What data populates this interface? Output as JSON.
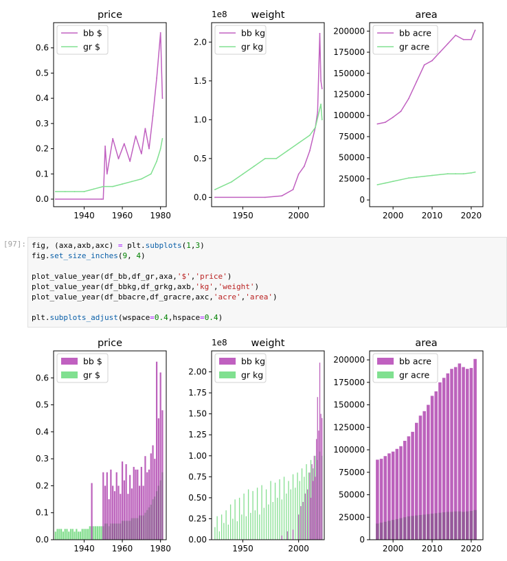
{
  "notebook": {
    "cell_prompt": "[97]:",
    "code_lines": [
      [
        [
          "t",
          "fig, (axa,axb,axc) "
        ],
        [
          "o",
          "="
        ],
        [
          "t",
          " plt."
        ],
        [
          "f",
          "subplots"
        ],
        [
          "t",
          "("
        ],
        [
          "n",
          "1"
        ],
        [
          "t",
          ","
        ],
        [
          "n",
          "3"
        ],
        [
          "t",
          ")"
        ]
      ],
      [
        [
          "t",
          "fig."
        ],
        [
          "f",
          "set_size_inches"
        ],
        [
          "t",
          "("
        ],
        [
          "n",
          "9"
        ],
        [
          "t",
          ", "
        ],
        [
          "n",
          "4"
        ],
        [
          "t",
          ")"
        ]
      ],
      [],
      [
        [
          "t",
          "plot_value_year(df_bb,df_gr,axa,"
        ],
        [
          "s",
          "'$'"
        ],
        [
          "t",
          ","
        ],
        [
          "s",
          "'price'"
        ],
        [
          "t",
          ")"
        ]
      ],
      [
        [
          "t",
          "plot_value_year(df_bbkg,df_grkg,axb,"
        ],
        [
          "s",
          "'kg'"
        ],
        [
          "t",
          ","
        ],
        [
          "s",
          "'weight'"
        ],
        [
          "t",
          ")"
        ]
      ],
      [
        [
          "t",
          "plot_value_year(df_bbacre,df_gracre,axc,"
        ],
        [
          "s",
          "'acre'"
        ],
        [
          "t",
          ","
        ],
        [
          "s",
          "'area'"
        ],
        [
          "t",
          ")"
        ]
      ],
      [],
      [
        [
          "t",
          "plt."
        ],
        [
          "f",
          "subplots_adjust"
        ],
        [
          "t",
          "(wspace"
        ],
        [
          "o",
          "="
        ],
        [
          "n",
          "0.4"
        ],
        [
          "t",
          ",hspace"
        ],
        [
          "o",
          "="
        ],
        [
          "n",
          "0.4"
        ],
        [
          "t",
          ")"
        ]
      ]
    ]
  },
  "colors": {
    "bb": "#c060c0",
    "bb_bar": "#a020a0",
    "gr": "#80e090",
    "gr_bar": "#50d060",
    "overlap": "#60b070",
    "code_bg": "#f7f7f7"
  },
  "chart_data": [
    {
      "id": "top-price",
      "type": "line",
      "title": "price",
      "xlim": [
        1924,
        1983
      ],
      "ylim": [
        -0.03,
        0.7
      ],
      "xticks": [
        1940,
        1960,
        1980
      ],
      "xtick_labels": [
        "1940",
        "1960",
        "1980"
      ],
      "yticks": [
        0,
        0.1,
        0.2,
        0.3,
        0.4,
        0.5,
        0.6
      ],
      "ytick_labels": [
        "0.0",
        "0.1",
        "0.2",
        "0.3",
        "0.4",
        "0.5",
        "0.6"
      ],
      "offset_label": "",
      "legend": [
        "bb $",
        "gr $"
      ],
      "legend_placement": "upper left",
      "series": [
        {
          "name": "bb $",
          "x": [
            1925,
            1949,
            1950,
            1951,
            1952,
            1955,
            1958,
            1961,
            1964,
            1967,
            1970,
            1972,
            1974,
            1976,
            1978,
            1980,
            1981
          ],
          "y": [
            0,
            0,
            0,
            0.21,
            0.1,
            0.24,
            0.16,
            0.22,
            0.15,
            0.25,
            0.18,
            0.28,
            0.2,
            0.33,
            0.48,
            0.66,
            0.4
          ]
        },
        {
          "name": "gr $",
          "x": [
            1925,
            1930,
            1935,
            1940,
            1945,
            1950,
            1955,
            1960,
            1965,
            1970,
            1975,
            1978,
            1980,
            1981
          ],
          "y": [
            0.03,
            0.03,
            0.03,
            0.03,
            0.04,
            0.05,
            0.05,
            0.06,
            0.07,
            0.08,
            0.1,
            0.15,
            0.2,
            0.24
          ]
        }
      ]
    },
    {
      "id": "top-weight",
      "type": "line",
      "title": "weight",
      "xlim": [
        1922,
        2023
      ],
      "ylim": [
        -12000000,
        225000000
      ],
      "xticks": [
        1950,
        2000
      ],
      "xtick_labels": [
        "1950",
        "2000"
      ],
      "yticks": [
        0,
        50000000,
        100000000,
        150000000,
        200000000
      ],
      "ytick_labels": [
        "0.0",
        "0.5",
        "1.0",
        "1.5",
        "2.0"
      ],
      "offset_label": "1e8",
      "legend": [
        "bb kg",
        "gr kg"
      ],
      "legend_placement": "upper left",
      "series": [
        {
          "name": "bb kg",
          "x": [
            1925,
            1970,
            1985,
            1995,
            2000,
            2005,
            2010,
            2015,
            2017,
            2019,
            2020,
            2021
          ],
          "y": [
            0,
            0,
            2000000,
            10000000,
            30000000,
            40000000,
            60000000,
            90000000,
            110000000,
            211000000,
            150000000,
            140000000
          ]
        },
        {
          "name": "gr kg",
          "x": [
            1925,
            1940,
            1950,
            1960,
            1970,
            1980,
            1990,
            2000,
            2010,
            2015,
            2020,
            2021
          ],
          "y": [
            10000000,
            20000000,
            30000000,
            40000000,
            50000000,
            50000000,
            60000000,
            70000000,
            80000000,
            90000000,
            120000000,
            100000000
          ]
        }
      ]
    },
    {
      "id": "top-area",
      "type": "line",
      "title": "area",
      "xlim": [
        1994,
        2023
      ],
      "ylim": [
        -8000,
        210000
      ],
      "xticks": [
        2000,
        2010,
        2020
      ],
      "xtick_labels": [
        "2000",
        "2010",
        "2020"
      ],
      "yticks": [
        0,
        25000,
        50000,
        75000,
        100000,
        125000,
        150000,
        175000,
        200000
      ],
      "ytick_labels": [
        "0",
        "25000",
        "50000",
        "75000",
        "100000",
        "125000",
        "150000",
        "175000",
        "200000"
      ],
      "offset_label": "",
      "legend": [
        "bb acre",
        "gr acre"
      ],
      "legend_placement": "upper left",
      "series": [
        {
          "name": "bb acre",
          "x": [
            1996,
            1998,
            2000,
            2002,
            2004,
            2006,
            2008,
            2010,
            2012,
            2014,
            2016,
            2018,
            2020,
            2021
          ],
          "y": [
            90000,
            92000,
            98000,
            105000,
            120000,
            140000,
            160000,
            165000,
            175000,
            185000,
            195000,
            190000,
            190000,
            201000
          ]
        },
        {
          "name": "gr acre",
          "x": [
            1996,
            1998,
            2000,
            2002,
            2004,
            2006,
            2008,
            2010,
            2012,
            2014,
            2016,
            2018,
            2020,
            2021
          ],
          "y": [
            18000,
            20000,
            22000,
            24000,
            26000,
            27000,
            28000,
            29000,
            30000,
            31000,
            31000,
            31000,
            32000,
            33000
          ]
        }
      ]
    },
    {
      "id": "bottom-price",
      "type": "bar",
      "title": "price",
      "xlim": [
        1924,
        1983
      ],
      "ylim": [
        0,
        0.7
      ],
      "xticks": [
        1940,
        1960,
        1980
      ],
      "xtick_labels": [
        "1940",
        "1960",
        "1980"
      ],
      "yticks": [
        0,
        0.1,
        0.2,
        0.3,
        0.4,
        0.5,
        0.6
      ],
      "ytick_labels": [
        "0.0",
        "0.1",
        "0.2",
        "0.3",
        "0.4",
        "0.5",
        "0.6"
      ],
      "offset_label": "",
      "legend": [
        "bb $",
        "gr $"
      ],
      "legend_placement": "upper left",
      "series": [
        {
          "name": "bb $",
          "x": [
            1944,
            1950,
            1951,
            1952,
            1953,
            1954,
            1955,
            1956,
            1957,
            1958,
            1959,
            1960,
            1961,
            1962,
            1963,
            1964,
            1965,
            1966,
            1967,
            1968,
            1969,
            1970,
            1971,
            1972,
            1973,
            1974,
            1975,
            1976,
            1977,
            1978,
            1979,
            1980,
            1981
          ],
          "y": [
            0.21,
            0.25,
            0.2,
            0.25,
            0.15,
            0.26,
            0.2,
            0.18,
            0.25,
            0.2,
            0.17,
            0.29,
            0.22,
            0.28,
            0.17,
            0.24,
            0.19,
            0.27,
            0.26,
            0.26,
            0.2,
            0.27,
            0.2,
            0.31,
            0.25,
            0.26,
            0.32,
            0.35,
            0.3,
            0.66,
            0.45,
            0.62,
            0.48
          ]
        },
        {
          "name": "gr $",
          "x": [
            1925,
            1926,
            1927,
            1928,
            1929,
            1930,
            1931,
            1932,
            1933,
            1934,
            1935,
            1936,
            1937,
            1938,
            1939,
            1940,
            1941,
            1942,
            1943,
            1944,
            1945,
            1946,
            1947,
            1948,
            1949,
            1950,
            1951,
            1952,
            1953,
            1954,
            1955,
            1956,
            1957,
            1958,
            1959,
            1960,
            1961,
            1962,
            1963,
            1964,
            1965,
            1966,
            1967,
            1968,
            1969,
            1970,
            1971,
            1972,
            1973,
            1974,
            1975,
            1976,
            1977,
            1978,
            1979,
            1980,
            1981
          ],
          "y": [
            0.03,
            0.04,
            0.04,
            0.04,
            0.03,
            0.04,
            0.04,
            0.03,
            0.04,
            0.04,
            0.03,
            0.04,
            0.03,
            0.03,
            0.04,
            0.04,
            0.04,
            0.04,
            0.05,
            0.05,
            0.05,
            0.05,
            0.05,
            0.05,
            0.05,
            0.05,
            0.06,
            0.06,
            0.05,
            0.06,
            0.06,
            0.06,
            0.06,
            0.06,
            0.06,
            0.07,
            0.07,
            0.07,
            0.07,
            0.07,
            0.08,
            0.08,
            0.08,
            0.08,
            0.09,
            0.09,
            0.09,
            0.1,
            0.11,
            0.12,
            0.13,
            0.15,
            0.16,
            0.18,
            0.2,
            0.22,
            0.25
          ]
        }
      ]
    },
    {
      "id": "bottom-weight",
      "type": "bar",
      "title": "weight",
      "xlim": [
        1922,
        2023
      ],
      "ylim": [
        0,
        225000000
      ],
      "xticks": [
        1950,
        2000
      ],
      "xtick_labels": [
        "1950",
        "2000"
      ],
      "yticks": [
        0,
        25000000,
        50000000,
        75000000,
        100000000,
        125000000,
        150000000,
        175000000,
        200000000
      ],
      "ytick_labels": [
        "0.00",
        "0.25",
        "0.50",
        "0.75",
        "1.00",
        "1.25",
        "1.50",
        "1.75",
        "2.00"
      ],
      "offset_label": "1e8",
      "legend": [
        "bb kg",
        "gr kg"
      ],
      "legend_placement": "upper left",
      "series": [
        {
          "name": "bb kg",
          "x": [
            1985,
            1990,
            1995,
            2000,
            2002,
            2004,
            2006,
            2008,
            2010,
            2011,
            2012,
            2013,
            2014,
            2015,
            2016,
            2017,
            2018,
            2019,
            2020,
            2021
          ],
          "y": [
            5000000,
            10000000,
            12000000,
            30000000,
            40000000,
            45000000,
            55000000,
            60000000,
            80000000,
            50000000,
            90000000,
            70000000,
            100000000,
            75000000,
            120000000,
            170000000,
            130000000,
            211000000,
            150000000,
            145000000
          ]
        },
        {
          "name": "gr kg",
          "x": [
            1925,
            1927,
            1929,
            1931,
            1933,
            1935,
            1937,
            1939,
            1941,
            1943,
            1945,
            1947,
            1949,
            1951,
            1953,
            1955,
            1957,
            1959,
            1961,
            1963,
            1965,
            1967,
            1969,
            1971,
            1973,
            1975,
            1977,
            1979,
            1981,
            1983,
            1985,
            1987,
            1989,
            1991,
            1993,
            1995,
            1997,
            1999,
            2001,
            2003,
            2005,
            2007,
            2009,
            2011,
            2013,
            2015,
            2017,
            2019,
            2021
          ],
          "y": [
            15000000,
            28000000,
            10000000,
            30000000,
            20000000,
            35000000,
            18000000,
            42000000,
            25000000,
            48000000,
            22000000,
            50000000,
            30000000,
            55000000,
            28000000,
            60000000,
            32000000,
            58000000,
            35000000,
            62000000,
            30000000,
            65000000,
            38000000,
            60000000,
            42000000,
            70000000,
            45000000,
            68000000,
            50000000,
            72000000,
            48000000,
            75000000,
            55000000,
            70000000,
            60000000,
            78000000,
            62000000,
            80000000,
            70000000,
            85000000,
            75000000,
            90000000,
            80000000,
            95000000,
            85000000,
            100000000,
            95000000,
            105000000,
            100000000
          ]
        }
      ]
    },
    {
      "id": "bottom-area",
      "type": "bar",
      "title": "area",
      "xlim": [
        1994,
        2023
      ],
      "ylim": [
        0,
        210000
      ],
      "xticks": [
        2000,
        2010,
        2020
      ],
      "xtick_labels": [
        "2000",
        "2010",
        "2020"
      ],
      "yticks": [
        0,
        25000,
        50000,
        75000,
        100000,
        125000,
        150000,
        175000,
        200000
      ],
      "ytick_labels": [
        "0",
        "25000",
        "50000",
        "75000",
        "100000",
        "125000",
        "150000",
        "175000",
        "200000"
      ],
      "offset_label": "",
      "legend": [
        "bb acre",
        "gr acre"
      ],
      "legend_placement": "upper left",
      "series": [
        {
          "name": "bb acre",
          "x": [
            1996,
            1997,
            1998,
            1999,
            2000,
            2001,
            2002,
            2003,
            2004,
            2005,
            2006,
            2007,
            2008,
            2009,
            2010,
            2011,
            2012,
            2013,
            2014,
            2015,
            2016,
            2017,
            2018,
            2019,
            2020,
            2021
          ],
          "y": [
            89000,
            90000,
            93000,
            96000,
            98000,
            101000,
            104000,
            110000,
            115000,
            120000,
            130000,
            138000,
            143000,
            150000,
            160000,
            165000,
            175000,
            180000,
            185000,
            190000,
            192000,
            196000,
            192000,
            190000,
            191000,
            201000
          ]
        },
        {
          "name": "gr acre",
          "x": [
            1996,
            1997,
            1998,
            1999,
            2000,
            2001,
            2002,
            2003,
            2004,
            2005,
            2006,
            2007,
            2008,
            2009,
            2010,
            2011,
            2012,
            2013,
            2014,
            2015,
            2016,
            2017,
            2018,
            2019,
            2020,
            2021
          ],
          "y": [
            18000,
            19000,
            20000,
            21000,
            22000,
            23000,
            24000,
            25000,
            26000,
            26500,
            27000,
            27500,
            28000,
            28500,
            29000,
            29500,
            30000,
            30500,
            31000,
            31000,
            31500,
            31500,
            31000,
            31500,
            32000,
            33000
          ]
        }
      ]
    }
  ]
}
